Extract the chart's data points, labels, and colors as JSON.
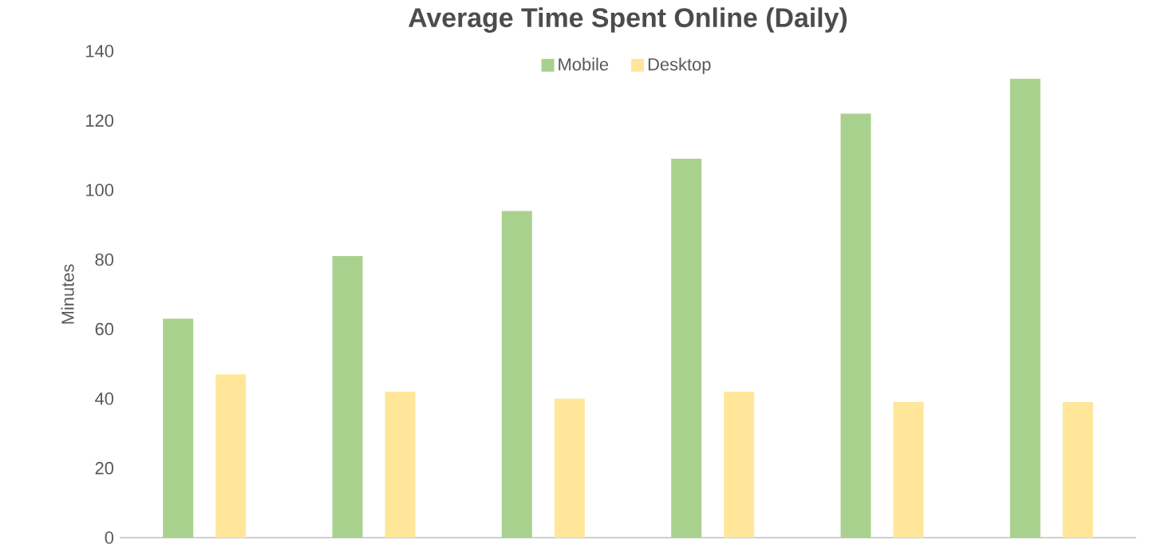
{
  "chart_data": {
    "type": "bar",
    "title": "Average Time Spent Online (Daily)",
    "ylabel": "Minutes",
    "categories": [
      null,
      null,
      null,
      null,
      null,
      null
    ],
    "series": [
      {
        "name": "Mobile",
        "color": "#a9d18e",
        "values": [
          63,
          81,
          94,
          109,
          122,
          132
        ]
      },
      {
        "name": "Desktop",
        "color": "#ffe699",
        "values": [
          47,
          42,
          40,
          42,
          39,
          39
        ]
      }
    ],
    "ylim": [
      0,
      140
    ],
    "yticks": [
      0,
      20,
      40,
      60,
      80,
      100,
      120,
      140
    ],
    "grid": false,
    "legend": "top",
    "tick_labels": "y"
  }
}
